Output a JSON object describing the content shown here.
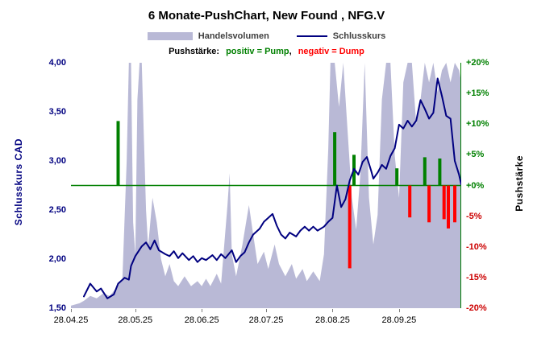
{
  "title": "6 Monate-PushChart, New Found , NFG.V",
  "legend": {
    "volume_label": "Handelsvolumen",
    "close_label": "Schlusskurs",
    "push_prefix": "Pushstärke:",
    "push_positive": "positiv = Pump",
    "push_separator": ",",
    "push_negative": "negativ = Dump"
  },
  "axes": {
    "left_title": "Schlusskurs CAD",
    "right_title": "Pushstärke",
    "left_ticks": [
      {
        "label": "4,00",
        "value": 4.0
      },
      {
        "label": "3,50",
        "value": 3.5
      },
      {
        "label": "3,00",
        "value": 3.0
      },
      {
        "label": "2,50",
        "value": 2.5
      },
      {
        "label": "2,00",
        "value": 2.0
      },
      {
        "label": "1,50",
        "value": 1.5
      }
    ],
    "right_ticks": [
      {
        "label": "+20%",
        "value": 20
      },
      {
        "label": "+15%",
        "value": 15
      },
      {
        "label": "+10%",
        "value": 10
      },
      {
        "label": "+5%",
        "value": 5
      },
      {
        "label": "+0%",
        "value": 0
      },
      {
        "label": "-5%",
        "value": -5
      },
      {
        "label": "-10%",
        "value": -10
      },
      {
        "label": "-15%",
        "value": -15
      },
      {
        "label": "-20%",
        "value": -20
      }
    ],
    "x_ticks": [
      {
        "label": "28.04.25",
        "day": 0
      },
      {
        "label": "28.05.25",
        "day": 30
      },
      {
        "label": "28.06.25",
        "day": 61
      },
      {
        "label": "28.07.25",
        "day": 91
      },
      {
        "label": "28.08.25",
        "day": 122
      },
      {
        "label": "28.09.25",
        "day": 153
      }
    ]
  },
  "colors": {
    "close_line": "#000080",
    "volume_fill": "#b9b9d6",
    "pump": "#008000",
    "dump": "#ff0000",
    "right_tick_negative": "#cc0000",
    "axis_left_text": "#000080",
    "x_tick_text": "#000000"
  },
  "chart_data": {
    "type": "line",
    "title": "6 Monate-PushChart, New Found , NFG.V",
    "x_unit": "days since 28.04.25",
    "x_range": [
      0,
      182
    ],
    "left_axis": {
      "label": "Schlusskurs CAD",
      "range": [
        1.5,
        4.0
      ],
      "unit": "CAD"
    },
    "right_axis": {
      "label": "Pushstärke",
      "range": [
        -20,
        20
      ],
      "unit": "%"
    },
    "zero_line": {
      "axis": "right",
      "value": 0,
      "color": "#008000"
    },
    "series": [
      {
        "id": "volume",
        "name": "Handelsvolumen",
        "type": "area",
        "axis": "volume-relative",
        "unit": "% of max volume",
        "color": "#b9b9d6",
        "points": [
          [
            0,
            1
          ],
          [
            4,
            2
          ],
          [
            6,
            3
          ],
          [
            9,
            5
          ],
          [
            12,
            4
          ],
          [
            15,
            6
          ],
          [
            18,
            5
          ],
          [
            21,
            8
          ],
          [
            24,
            12
          ],
          [
            26,
            60
          ],
          [
            27,
            100
          ],
          [
            28,
            100
          ],
          [
            29,
            35
          ],
          [
            30,
            22
          ],
          [
            31,
            85
          ],
          [
            32,
            100
          ],
          [
            33,
            100
          ],
          [
            34,
            70
          ],
          [
            35,
            40
          ],
          [
            36,
            25
          ],
          [
            38,
            45
          ],
          [
            40,
            35
          ],
          [
            42,
            20
          ],
          [
            44,
            13
          ],
          [
            46,
            18
          ],
          [
            48,
            11
          ],
          [
            50,
            9
          ],
          [
            53,
            13
          ],
          [
            56,
            9
          ],
          [
            59,
            11
          ],
          [
            61,
            9
          ],
          [
            63,
            12
          ],
          [
            65,
            9
          ],
          [
            68,
            14
          ],
          [
            70,
            10
          ],
          [
            73,
            42
          ],
          [
            74,
            55
          ],
          [
            75,
            22
          ],
          [
            77,
            13
          ],
          [
            80,
            26
          ],
          [
            83,
            42
          ],
          [
            85,
            30
          ],
          [
            87,
            18
          ],
          [
            90,
            23
          ],
          [
            92,
            16
          ],
          [
            95,
            26
          ],
          [
            97,
            18
          ],
          [
            100,
            13
          ],
          [
            103,
            18
          ],
          [
            105,
            12
          ],
          [
            108,
            16
          ],
          [
            110,
            11
          ],
          [
            113,
            15
          ],
          [
            116,
            11
          ],
          [
            118,
            22
          ],
          [
            120,
            65
          ],
          [
            121,
            100
          ],
          [
            123,
            100
          ],
          [
            125,
            82
          ],
          [
            127,
            100
          ],
          [
            129,
            72
          ],
          [
            131,
            45
          ],
          [
            133,
            32
          ],
          [
            135,
            55
          ],
          [
            137,
            100
          ],
          [
            139,
            45
          ],
          [
            141,
            26
          ],
          [
            143,
            38
          ],
          [
            145,
            85
          ],
          [
            147,
            100
          ],
          [
            149,
            100
          ],
          [
            151,
            62
          ],
          [
            153,
            45
          ],
          [
            155,
            92
          ],
          [
            157,
            100
          ],
          [
            159,
            100
          ],
          [
            161,
            75
          ],
          [
            163,
            85
          ],
          [
            165,
            100
          ],
          [
            167,
            92
          ],
          [
            169,
            100
          ],
          [
            171,
            88
          ],
          [
            173,
            97
          ],
          [
            175,
            100
          ],
          [
            177,
            92
          ],
          [
            179,
            100
          ],
          [
            181,
            97
          ],
          [
            182,
            92
          ]
        ]
      },
      {
        "id": "close",
        "name": "Schlusskurs",
        "type": "line",
        "axis": "left",
        "unit": "CAD",
        "color": "#000080",
        "points": [
          [
            6,
            1.62
          ],
          [
            9,
            1.75
          ],
          [
            12,
            1.67
          ],
          [
            14,
            1.7
          ],
          [
            17,
            1.6
          ],
          [
            20,
            1.64
          ],
          [
            22,
            1.75
          ],
          [
            25,
            1.81
          ],
          [
            27,
            1.79
          ],
          [
            28,
            1.93
          ],
          [
            30,
            2.03
          ],
          [
            33,
            2.13
          ],
          [
            35,
            2.17
          ],
          [
            37,
            2.1
          ],
          [
            39,
            2.19
          ],
          [
            41,
            2.09
          ],
          [
            44,
            2.05
          ],
          [
            46,
            2.03
          ],
          [
            48,
            2.08
          ],
          [
            50,
            2.01
          ],
          [
            52,
            2.06
          ],
          [
            55,
            1.99
          ],
          [
            57,
            2.03
          ],
          [
            59,
            1.97
          ],
          [
            61,
            2.01
          ],
          [
            63,
            1.99
          ],
          [
            66,
            2.04
          ],
          [
            68,
            1.99
          ],
          [
            70,
            2.05
          ],
          [
            72,
            2.01
          ],
          [
            75,
            2.09
          ],
          [
            77,
            1.97
          ],
          [
            79,
            2.03
          ],
          [
            81,
            2.07
          ],
          [
            83,
            2.17
          ],
          [
            85,
            2.25
          ],
          [
            88,
            2.31
          ],
          [
            90,
            2.38
          ],
          [
            92,
            2.42
          ],
          [
            94,
            2.46
          ],
          [
            96,
            2.34
          ],
          [
            98,
            2.25
          ],
          [
            100,
            2.21
          ],
          [
            102,
            2.27
          ],
          [
            105,
            2.23
          ],
          [
            107,
            2.29
          ],
          [
            109,
            2.33
          ],
          [
            111,
            2.29
          ],
          [
            113,
            2.33
          ],
          [
            115,
            2.29
          ],
          [
            118,
            2.33
          ],
          [
            120,
            2.38
          ],
          [
            122,
            2.42
          ],
          [
            124,
            2.75
          ],
          [
            126,
            2.53
          ],
          [
            128,
            2.61
          ],
          [
            130,
            2.8
          ],
          [
            132,
            2.92
          ],
          [
            134,
            2.86
          ],
          [
            136,
            2.99
          ],
          [
            138,
            3.04
          ],
          [
            140,
            2.9
          ],
          [
            141,
            2.82
          ],
          [
            143,
            2.88
          ],
          [
            145,
            2.96
          ],
          [
            147,
            2.92
          ],
          [
            149,
            3.05
          ],
          [
            151,
            3.13
          ],
          [
            153,
            3.37
          ],
          [
            155,
            3.33
          ],
          [
            157,
            3.41
          ],
          [
            159,
            3.35
          ],
          [
            161,
            3.41
          ],
          [
            163,
            3.62
          ],
          [
            165,
            3.53
          ],
          [
            167,
            3.43
          ],
          [
            169,
            3.49
          ],
          [
            171,
            3.84
          ],
          [
            173,
            3.66
          ],
          [
            175,
            3.46
          ],
          [
            177,
            3.43
          ],
          [
            179,
            3.0
          ],
          [
            181,
            2.86
          ],
          [
            182,
            2.76
          ]
        ]
      },
      {
        "id": "pump",
        "name": "Pushstärke positiv (Pump)",
        "type": "bar",
        "axis": "right",
        "unit": "%",
        "color": "#008000",
        "points": [
          [
            22,
            10.5
          ],
          [
            123,
            8.7
          ],
          [
            132,
            5.0
          ],
          [
            152,
            2.8
          ],
          [
            165,
            4.6
          ],
          [
            172,
            4.4
          ]
        ]
      },
      {
        "id": "dump",
        "name": "Pushstärke negativ (Dump)",
        "type": "bar",
        "axis": "right",
        "unit": "%",
        "color": "#ff0000",
        "points": [
          [
            130,
            -13.5
          ],
          [
            158,
            -5.2
          ],
          [
            167,
            -6.0
          ],
          [
            174,
            -5.5
          ],
          [
            176,
            -7.0
          ],
          [
            179,
            -6.0
          ]
        ]
      }
    ]
  }
}
